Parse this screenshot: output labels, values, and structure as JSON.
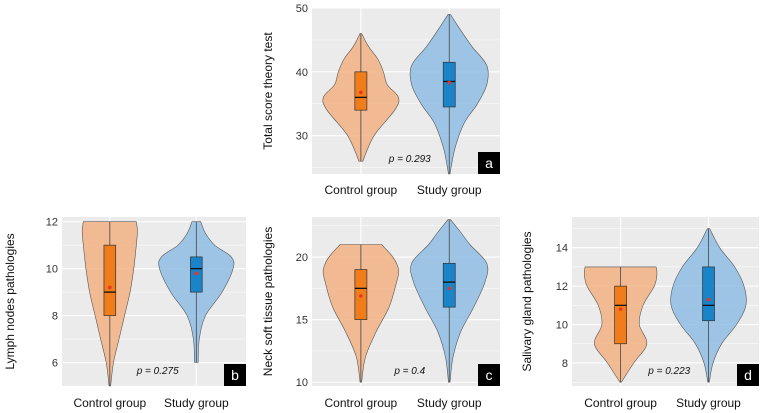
{
  "colors": {
    "panel_bg": "#ebebeb",
    "grid": "#ffffff",
    "control_violin": "#f2b183",
    "control_box": "#f07d1a",
    "study_violin": "#8fbde3",
    "study_box": "#1a84c8",
    "mean_point": "#e8352b",
    "panel_label_bg": "#000000"
  },
  "chart_data": [
    {
      "type": "violin",
      "panel_label": "a",
      "ylabel": "Total score theory test",
      "categories": [
        "Control group",
        "Study group"
      ],
      "ylim": [
        24,
        50
      ],
      "yticks": [
        30,
        40,
        50
      ],
      "p_value": "p = 0.293",
      "groups": [
        {
          "name": "Control group",
          "min": 26,
          "q1": 34,
          "median": 36,
          "q3": 40,
          "max": 46,
          "mean": 36.8,
          "density": [
            [
              26,
              0.05
            ],
            [
              30,
              0.35
            ],
            [
              34,
              0.9
            ],
            [
              36,
              1.0
            ],
            [
              38,
              0.7
            ],
            [
              40,
              0.6
            ],
            [
              42,
              0.45
            ],
            [
              44,
              0.2
            ],
            [
              46,
              0.02
            ]
          ]
        },
        {
          "name": "Study group",
          "min": 24,
          "q1": 34.5,
          "median": 38.5,
          "q3": 41.5,
          "max": 49,
          "mean": 38.3,
          "density": [
            [
              24,
              0.02
            ],
            [
              28,
              0.15
            ],
            [
              32,
              0.4
            ],
            [
              35,
              0.75
            ],
            [
              38,
              1.0
            ],
            [
              41,
              1.0
            ],
            [
              44,
              0.6
            ],
            [
              47,
              0.25
            ],
            [
              49,
              0.03
            ]
          ]
        }
      ]
    },
    {
      "type": "violin",
      "panel_label": "b",
      "ylabel": "Lymph nodes pathologies",
      "categories": [
        "Control group",
        "Study group"
      ],
      "ylim": [
        5,
        12.2
      ],
      "yticks": [
        6,
        8,
        10,
        12
      ],
      "p_value": "p = 0.275",
      "groups": [
        {
          "name": "Control group",
          "min": 5,
          "q1": 8,
          "median": 9,
          "q3": 11,
          "max": 12,
          "mean": 9.2,
          "density": [
            [
              5,
              0.02
            ],
            [
              6,
              0.1
            ],
            [
              7,
              0.25
            ],
            [
              8,
              0.4
            ],
            [
              9,
              0.55
            ],
            [
              10,
              0.65
            ],
            [
              11,
              0.72
            ],
            [
              11.6,
              0.75
            ],
            [
              12,
              0.72
            ]
          ]
        },
        {
          "name": "Study group",
          "min": 6,
          "q1": 9,
          "median": 10,
          "q3": 10.5,
          "max": 12,
          "mean": 9.8,
          "density": [
            [
              6,
              0.05
            ],
            [
              7,
              0.08
            ],
            [
              8,
              0.25
            ],
            [
              9,
              0.7
            ],
            [
              10,
              1.0
            ],
            [
              10.5,
              0.95
            ],
            [
              11,
              0.5
            ],
            [
              11.5,
              0.25
            ],
            [
              12,
              0.12
            ]
          ]
        }
      ]
    },
    {
      "type": "violin",
      "panel_label": "c",
      "ylabel": "Neck soft tissue pathologies",
      "categories": [
        "Control group",
        "Study group"
      ],
      "ylim": [
        9.7,
        23.2
      ],
      "yticks": [
        10,
        15,
        20
      ],
      "p_value": "p = 0.4",
      "groups": [
        {
          "name": "Control group",
          "min": 10,
          "q1": 15,
          "median": 17.5,
          "q3": 19,
          "max": 21,
          "mean": 16.9,
          "density": [
            [
              10,
              0.02
            ],
            [
              12,
              0.12
            ],
            [
              14,
              0.4
            ],
            [
              16,
              0.75
            ],
            [
              18,
              0.95
            ],
            [
              19,
              1.0
            ],
            [
              20,
              0.85
            ],
            [
              21,
              0.55
            ]
          ]
        },
        {
          "name": "Study group",
          "min": 10,
          "q1": 16,
          "median": 18,
          "q3": 19.5,
          "max": 23,
          "mean": 17.5,
          "density": [
            [
              10,
              0.02
            ],
            [
              12,
              0.1
            ],
            [
              14,
              0.3
            ],
            [
              16,
              0.65
            ],
            [
              18,
              0.95
            ],
            [
              19.5,
              1.0
            ],
            [
              21,
              0.55
            ],
            [
              22,
              0.3
            ],
            [
              23,
              0.03
            ]
          ]
        }
      ]
    },
    {
      "type": "violin",
      "panel_label": "d",
      "ylabel": "Salivary gland pathologies",
      "categories": [
        "Control group",
        "Study group"
      ],
      "ylim": [
        6.8,
        15.6
      ],
      "yticks": [
        8,
        10,
        12,
        14
      ],
      "p_value": "p = 0.223",
      "groups": [
        {
          "name": "Control group",
          "min": 7,
          "q1": 9,
          "median": 11,
          "q3": 12,
          "max": 13,
          "mean": 10.8,
          "density": [
            [
              7,
              0.02
            ],
            [
              8,
              0.35
            ],
            [
              9,
              0.7
            ],
            [
              10,
              0.5
            ],
            [
              11,
              0.6
            ],
            [
              12,
              0.9
            ],
            [
              12.6,
              0.97
            ],
            [
              13,
              0.95
            ]
          ]
        },
        {
          "name": "Study group",
          "min": 7,
          "q1": 10.2,
          "median": 11,
          "q3": 13,
          "max": 15,
          "mean": 11.3,
          "density": [
            [
              7,
              0.02
            ],
            [
              8,
              0.12
            ],
            [
              9,
              0.35
            ],
            [
              10,
              0.75
            ],
            [
              11,
              1.0
            ],
            [
              12,
              0.95
            ],
            [
              13,
              0.7
            ],
            [
              14,
              0.3
            ],
            [
              15,
              0.03
            ]
          ]
        }
      ]
    }
  ]
}
